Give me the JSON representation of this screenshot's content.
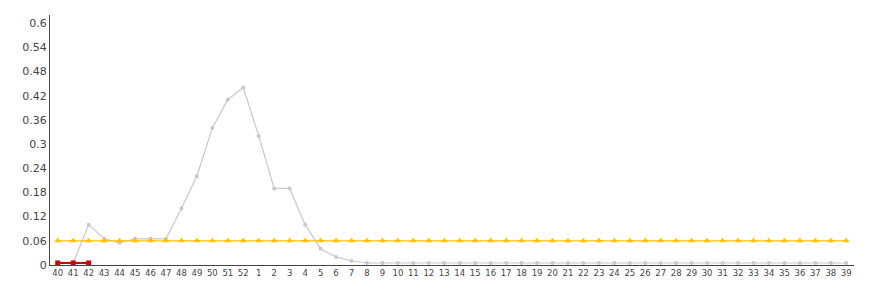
{
  "chart_data": {
    "type": "line",
    "categories": [
      "40",
      "41",
      "42",
      "43",
      "44",
      "45",
      "46",
      "47",
      "48",
      "49",
      "50",
      "51",
      "52",
      "1",
      "2",
      "3",
      "4",
      "5",
      "6",
      "7",
      "8",
      "9",
      "10",
      "11",
      "12",
      "13",
      "14",
      "15",
      "16",
      "17",
      "18",
      "19",
      "20",
      "21",
      "22",
      "23",
      "24",
      "25",
      "26",
      "27",
      "28",
      "29",
      "30",
      "31",
      "32",
      "33",
      "34",
      "35",
      "36",
      "37",
      "38",
      "39"
    ],
    "series": [
      {
        "color": "#c8c8c8",
        "marker": "circle",
        "values": [
          0.005,
          0.005,
          0.1,
          0.065,
          0.055,
          0.065,
          0.065,
          0.065,
          0.14,
          0.22,
          0.34,
          0.41,
          0.44,
          0.32,
          0.19,
          0.19,
          0.1,
          0.04,
          0.02,
          0.01,
          0.005,
          0.005,
          0.005,
          0.005,
          0.005,
          0.005,
          0.005,
          0.005,
          0.005,
          0.005,
          0.005,
          0.005,
          0.005,
          0.005,
          0.005,
          0.005,
          0.005,
          0.005,
          0.005,
          0.005,
          0.005,
          0.005,
          0.005,
          0.005,
          0.005,
          0.005,
          0.005,
          0.005,
          0.005,
          0.005,
          0.005,
          0.005
        ]
      },
      {
        "color": "#FFC000",
        "marker": "triangle",
        "values": [
          0.06,
          0.06,
          0.06,
          0.06,
          0.06,
          0.06,
          0.06,
          0.06,
          0.06,
          0.06,
          0.06,
          0.06,
          0.06,
          0.06,
          0.06,
          0.06,
          0.06,
          0.06,
          0.06,
          0.06,
          0.06,
          0.06,
          0.06,
          0.06,
          0.06,
          0.06,
          0.06,
          0.06,
          0.06,
          0.06,
          0.06,
          0.06,
          0.06,
          0.06,
          0.06,
          0.06,
          0.06,
          0.06,
          0.06,
          0.06,
          0.06,
          0.06,
          0.06,
          0.06,
          0.06,
          0.06,
          0.06,
          0.06,
          0.06,
          0.06,
          0.06,
          0.06
        ]
      },
      {
        "color": "#CC0000",
        "marker": "square",
        "values": [
          0.005,
          0.005,
          0.005,
          null,
          null,
          null,
          null,
          null,
          null,
          null,
          null,
          null,
          null,
          null,
          null,
          null,
          null,
          null,
          null,
          null,
          null,
          null,
          null,
          null,
          null,
          null,
          null,
          null,
          null,
          null,
          null,
          null,
          null,
          null,
          null,
          null,
          null,
          null,
          null,
          null,
          null,
          null,
          null,
          null,
          null,
          null,
          null,
          null,
          null,
          null,
          null,
          null
        ]
      }
    ],
    "ylim": [
      0,
      0.62
    ],
    "yticks": [
      0,
      0.06,
      0.12,
      0.18,
      0.24,
      0.3,
      0.36,
      0.42,
      0.48,
      0.54,
      0.6
    ],
    "grid": false
  }
}
